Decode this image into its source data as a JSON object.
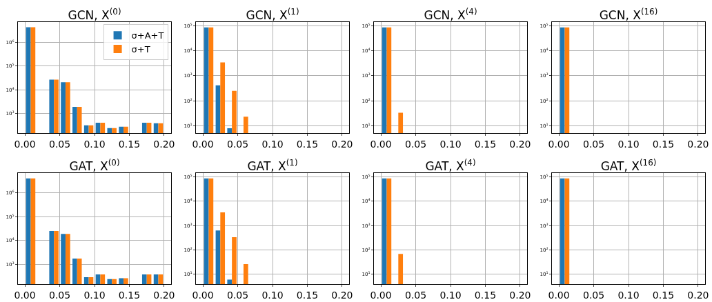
{
  "chart_data": [
    {
      "type": "histogram",
      "title": "GCN, X$^{(0)}$",
      "bins": [
        0,
        0.016667,
        0.033333,
        0.05,
        0.066667,
        0.083333,
        0.1,
        0.116667,
        0.133333,
        0.15,
        0.166667,
        0.183333,
        0.2
      ],
      "xlim": [
        -0.01,
        0.21
      ],
      "xticks": [
        {
          "value": 0,
          "label": "0.00"
        },
        {
          "value": 0.05,
          "label": "0.05"
        },
        {
          "value": 0.1,
          "label": "0.10"
        },
        {
          "value": 0.15,
          "label": "0.15"
        },
        {
          "value": 0.2,
          "label": "0.20"
        }
      ],
      "ylim": [
        155,
        6900000
      ],
      "yticks": [
        {
          "value": 1000,
          "label": "10$^{3}$"
        },
        {
          "value": 10000,
          "label": "10$^{4}$"
        },
        {
          "value": 100000,
          "label": "10$^{5}$"
        },
        {
          "value": 1000000,
          "label": "10$^{6}$"
        }
      ],
      "log": true,
      "grid": true,
      "legend": "top right",
      "series": [
        {
          "name": "σ+A+T",
          "color": "#1f77b4",
          "values": [
            4200000,
            null,
            27000,
            21000,
            1950,
            330,
            420,
            250,
            285,
            null,
            420,
            400
          ]
        },
        {
          "name": "σ+T",
          "color": "#ff7f0e",
          "values": [
            4200000,
            null,
            27000,
            21000,
            1950,
            330,
            420,
            250,
            285,
            null,
            420,
            400
          ]
        }
      ]
    },
    {
      "type": "histogram",
      "title": "GCN, X$^{(1)}$",
      "bins": [
        0,
        0.016667,
        0.033333,
        0.05,
        0.066667,
        0.083333,
        0.1,
        0.116667,
        0.133333,
        0.15,
        0.166667,
        0.183333,
        0.2
      ],
      "xlim": [
        -0.01,
        0.21
      ],
      "xticks": [
        {
          "value": 0,
          "label": "0.00"
        },
        {
          "value": 0.05,
          "label": "0.05"
        },
        {
          "value": 0.1,
          "label": "0.10"
        },
        {
          "value": 0.15,
          "label": "0.15"
        },
        {
          "value": 0.2,
          "label": "0.20"
        }
      ],
      "ylim": [
        5.1,
        140000
      ],
      "yticks": [
        {
          "value": 10,
          "label": "10$^{1}$"
        },
        {
          "value": 100,
          "label": "10$^{2}$"
        },
        {
          "value": 1000,
          "label": "10$^{3}$"
        },
        {
          "value": 10000,
          "label": "10$^{4}$"
        },
        {
          "value": 100000,
          "label": "10$^{5}$"
        }
      ],
      "log": true,
      "grid": true,
      "series": [
        {
          "color": "#1f77b4",
          "values": [
            85000,
            415,
            8,
            null,
            null,
            null,
            null,
            null,
            null,
            null,
            null,
            null
          ]
        },
        {
          "color": "#ff7f0e",
          "values": [
            85000,
            3400,
            250,
            23,
            null,
            null,
            null,
            null,
            null,
            null,
            null,
            null
          ]
        }
      ]
    },
    {
      "type": "histogram",
      "title": "GCN, X$^{(4)}$",
      "bins": [
        0,
        0.016667,
        0.033333,
        0.05,
        0.066667,
        0.083333,
        0.1,
        0.116667,
        0.133333,
        0.15,
        0.166667,
        0.183333,
        0.2
      ],
      "xlim": [
        -0.01,
        0.21
      ],
      "xticks": [
        {
          "value": 0,
          "label": "0.00"
        },
        {
          "value": 0.05,
          "label": "0.05"
        },
        {
          "value": 0.1,
          "label": "0.10"
        },
        {
          "value": 0.15,
          "label": "0.15"
        },
        {
          "value": 0.2,
          "label": "0.20"
        }
      ],
      "ylim": [
        5.1,
        140000
      ],
      "yticks": [
        {
          "value": 10,
          "label": "10$^{1}$"
        },
        {
          "value": 100,
          "label": "10$^{2}$"
        },
        {
          "value": 1000,
          "label": "10$^{3}$"
        },
        {
          "value": 10000,
          "label": "10$^{4}$"
        },
        {
          "value": 100000,
          "label": "10$^{5}$"
        }
      ],
      "log": true,
      "grid": true,
      "series": [
        {
          "color": "#1f77b4",
          "values": [
            85000,
            null,
            null,
            null,
            null,
            null,
            null,
            null,
            null,
            null,
            null,
            null
          ]
        },
        {
          "color": "#ff7f0e",
          "values": [
            85000,
            33,
            null,
            null,
            null,
            null,
            null,
            null,
            null,
            null,
            null,
            null
          ]
        }
      ]
    },
    {
      "type": "histogram",
      "title": "GCN, X$^{(16)}$",
      "bins": [
        0,
        0.016667,
        0.033333,
        0.05,
        0.066667,
        0.083333,
        0.1,
        0.116667,
        0.133333,
        0.15,
        0.166667,
        0.183333,
        0.2
      ],
      "xlim": [
        -0.01,
        0.21
      ],
      "xticks": [
        {
          "value": 0,
          "label": "0.00"
        },
        {
          "value": 0.05,
          "label": "0.05"
        },
        {
          "value": 0.1,
          "label": "0.10"
        },
        {
          "value": 0.15,
          "label": "0.15"
        },
        {
          "value": 0.2,
          "label": "0.20"
        }
      ],
      "ylim": [
        5.1,
        140000
      ],
      "yticks": [
        {
          "value": 10,
          "label": "10$^{1}$"
        },
        {
          "value": 100,
          "label": "10$^{2}$"
        },
        {
          "value": 1000,
          "label": "10$^{3}$"
        },
        {
          "value": 10000,
          "label": "10$^{4}$"
        },
        {
          "value": 100000,
          "label": "10$^{5}$"
        }
      ],
      "log": true,
      "grid": true,
      "series": [
        {
          "color": "#1f77b4",
          "values": [
            85000,
            null,
            null,
            null,
            null,
            null,
            null,
            null,
            null,
            null,
            null,
            null
          ]
        },
        {
          "color": "#ff7f0e",
          "values": [
            85000,
            null,
            null,
            null,
            null,
            null,
            null,
            null,
            null,
            null,
            null,
            null
          ]
        }
      ]
    },
    {
      "type": "histogram",
      "title": "GAT, X$^{(0)}$",
      "bins": [
        0,
        0.016667,
        0.033333,
        0.05,
        0.066667,
        0.083333,
        0.1,
        0.116667,
        0.133333,
        0.15,
        0.166667,
        0.183333,
        0.2
      ],
      "xlim": [
        -0.01,
        0.21
      ],
      "xticks": [
        {
          "value": 0,
          "label": "0.00"
        },
        {
          "value": 0.05,
          "label": "0.05"
        },
        {
          "value": 0.1,
          "label": "0.10"
        },
        {
          "value": 0.15,
          "label": "0.15"
        },
        {
          "value": 0.2,
          "label": "0.20"
        }
      ],
      "ylim": [
        155,
        6500000
      ],
      "yticks": [
        {
          "value": 1000,
          "label": "10$^{3}$"
        },
        {
          "value": 10000,
          "label": "10$^{4}$"
        },
        {
          "value": 100000,
          "label": "10$^{5}$"
        },
        {
          "value": 1000000,
          "label": "10$^{6}$"
        }
      ],
      "log": true,
      "grid": true,
      "series": [
        {
          "color": "#1f77b4",
          "values": [
            3900000,
            null,
            25000,
            19000,
            1800,
            300,
            390,
            250,
            270,
            null,
            390,
            390
          ]
        },
        {
          "color": "#ff7f0e",
          "values": [
            3900000,
            null,
            25000,
            19000,
            1800,
            300,
            390,
            250,
            270,
            null,
            390,
            390
          ]
        }
      ]
    },
    {
      "type": "histogram",
      "title": "GAT, X$^{(1)}$",
      "bins": [
        0,
        0.016667,
        0.033333,
        0.05,
        0.066667,
        0.083333,
        0.1,
        0.116667,
        0.133333,
        0.15,
        0.166667,
        0.183333,
        0.2
      ],
      "xlim": [
        -0.01,
        0.21
      ],
      "xticks": [
        {
          "value": 0,
          "label": "0.00"
        },
        {
          "value": 0.05,
          "label": "0.05"
        },
        {
          "value": 0.1,
          "label": "0.10"
        },
        {
          "value": 0.15,
          "label": "0.15"
        },
        {
          "value": 0.2,
          "label": "0.20"
        }
      ],
      "ylim": [
        3.9,
        145000
      ],
      "yticks": [
        {
          "value": 10,
          "label": "10$^{1}$"
        },
        {
          "value": 100,
          "label": "10$^{2}$"
        },
        {
          "value": 1000,
          "label": "10$^{3}$"
        },
        {
          "value": 10000,
          "label": "10$^{4}$"
        },
        {
          "value": 100000,
          "label": "10$^{5}$"
        }
      ],
      "log": true,
      "grid": true,
      "series": [
        {
          "color": "#1f77b4",
          "values": [
            87000,
            630,
            6,
            null,
            null,
            null,
            null,
            null,
            null,
            null,
            null,
            null
          ]
        },
        {
          "color": "#ff7f0e",
          "values": [
            87000,
            3500,
            330,
            26,
            null,
            null,
            null,
            null,
            null,
            null,
            null,
            null
          ]
        }
      ]
    },
    {
      "type": "histogram",
      "title": "GAT, X$^{(4)}$",
      "bins": [
        0,
        0.016667,
        0.033333,
        0.05,
        0.066667,
        0.083333,
        0.1,
        0.116667,
        0.133333,
        0.15,
        0.166667,
        0.183333,
        0.2
      ],
      "xlim": [
        -0.01,
        0.21
      ],
      "xticks": [
        {
          "value": 0,
          "label": "0.00"
        },
        {
          "value": 0.05,
          "label": "0.05"
        },
        {
          "value": 0.1,
          "label": "0.10"
        },
        {
          "value": 0.15,
          "label": "0.15"
        },
        {
          "value": 0.2,
          "label": "0.20"
        }
      ],
      "ylim": [
        3.9,
        145000
      ],
      "yticks": [
        {
          "value": 10,
          "label": "10$^{1}$"
        },
        {
          "value": 100,
          "label": "10$^{2}$"
        },
        {
          "value": 1000,
          "label": "10$^{3}$"
        },
        {
          "value": 10000,
          "label": "10$^{4}$"
        },
        {
          "value": 100000,
          "label": "10$^{5}$"
        }
      ],
      "log": true,
      "grid": true,
      "series": [
        {
          "color": "#1f77b4",
          "values": [
            87000,
            null,
            null,
            null,
            null,
            null,
            null,
            null,
            null,
            null,
            null,
            null
          ]
        },
        {
          "color": "#ff7f0e",
          "values": [
            87000,
            68,
            null,
            null,
            null,
            null,
            null,
            null,
            null,
            null,
            null,
            null
          ]
        }
      ]
    },
    {
      "type": "histogram",
      "title": "GAT, X$^{(16)}$",
      "bins": [
        0,
        0.016667,
        0.033333,
        0.05,
        0.066667,
        0.083333,
        0.1,
        0.116667,
        0.133333,
        0.15,
        0.166667,
        0.183333,
        0.2
      ],
      "xlim": [
        -0.01,
        0.21
      ],
      "xticks": [
        {
          "value": 0,
          "label": "0.00"
        },
        {
          "value": 0.05,
          "label": "0.05"
        },
        {
          "value": 0.1,
          "label": "0.10"
        },
        {
          "value": 0.15,
          "label": "0.15"
        },
        {
          "value": 0.2,
          "label": "0.20"
        }
      ],
      "ylim": [
        3.9,
        145000
      ],
      "yticks": [
        {
          "value": 10,
          "label": "10$^{1}$"
        },
        {
          "value": 100,
          "label": "10$^{2}$"
        },
        {
          "value": 1000,
          "label": "10$^{3}$"
        },
        {
          "value": 10000,
          "label": "10$^{4}$"
        },
        {
          "value": 100000,
          "label": "10$^{5}$"
        }
      ],
      "log": true,
      "grid": true,
      "series": [
        {
          "color": "#1f77b4",
          "values": [
            87000,
            null,
            null,
            null,
            null,
            null,
            null,
            null,
            null,
            null,
            null,
            null
          ]
        },
        {
          "color": "#ff7f0e",
          "values": [
            87000,
            null,
            null,
            null,
            null,
            null,
            null,
            null,
            null,
            null,
            null,
            null
          ]
        }
      ]
    }
  ]
}
